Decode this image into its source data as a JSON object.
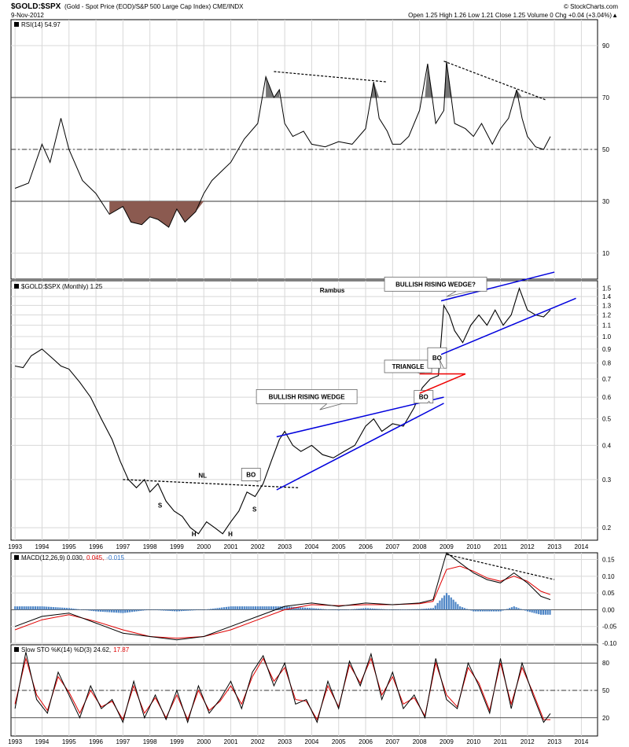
{
  "header": {
    "title": "$GOLD:$SPX",
    "subtitle": "(Gold - Spot Price (EOD)/S&P 500 Large Cap Index)  CME/INDX",
    "date": "9-Nov-2012",
    "site": "© StockCharts.com",
    "quote": "Open 1.25  High 1.26  Low 1.21  Close 1.25  Volume 0  Chg +0.04 (+3.04%)",
    "quote_up_arrow": "▲"
  },
  "chart_data": [
    {
      "type": "line",
      "panel": "rsi",
      "title": "RSI(14) 54.97",
      "ylabel": "",
      "ylim": [
        0,
        100
      ],
      "yticks": [
        10,
        30,
        50,
        70,
        90
      ],
      "reference_lines": [
        30,
        50,
        70
      ],
      "x": [
        1993.0,
        1993.5,
        1994.0,
        1994.3,
        1994.7,
        1995.0,
        1995.5,
        1996.0,
        1996.5,
        1997.0,
        1997.3,
        1997.7,
        1998.0,
        1998.3,
        1998.7,
        1999.0,
        1999.3,
        1999.7,
        2000.0,
        2000.3,
        2000.7,
        2001.0,
        2001.5,
        2002.0,
        2002.3,
        2002.6,
        2002.8,
        2003.0,
        2003.3,
        2003.7,
        2004.0,
        2004.5,
        2005.0,
        2005.5,
        2006.0,
        2006.3,
        2006.5,
        2006.8,
        2007.0,
        2007.3,
        2007.6,
        2008.0,
        2008.3,
        2008.6,
        2008.9,
        2009.0,
        2009.3,
        2009.7,
        2010.0,
        2010.3,
        2010.7,
        2011.0,
        2011.3,
        2011.6,
        2011.8,
        2012.0,
        2012.3,
        2012.6,
        2012.85
      ],
      "values": [
        35,
        37,
        52,
        45,
        62,
        50,
        38,
        33,
        25,
        28,
        22,
        21,
        24,
        23,
        20,
        27,
        22,
        26,
        33,
        38,
        42,
        45,
        54,
        60,
        78,
        70,
        73,
        60,
        55,
        57,
        52,
        51,
        53,
        52,
        58,
        76,
        62,
        57,
        52,
        52,
        55,
        65,
        83,
        60,
        65,
        84,
        60,
        58,
        55,
        60,
        52,
        58,
        62,
        73,
        62,
        55,
        51,
        50,
        54.97
      ],
      "annotations": [
        "dashed resistance line 2002-2006",
        "dashed resistance line 2008-2012"
      ]
    },
    {
      "type": "line",
      "panel": "price",
      "title": "$GOLD:$SPX (Monthly) 1.25",
      "ylabel": "",
      "yscale": "log",
      "ylim": [
        0.18,
        1.6
      ],
      "yticks": [
        0.2,
        0.3,
        0.4,
        0.5,
        0.6,
        0.7,
        0.8,
        0.9,
        1.0,
        1.1,
        1.2,
        1.3,
        1.4,
        1.5
      ],
      "x_ticks": [
        "1993",
        "1994",
        "1995",
        "1996",
        "1997",
        "1998",
        "1999",
        "2000",
        "2001",
        "2002",
        "2003",
        "2004",
        "2005",
        "2006",
        "2007",
        "2008",
        "2009",
        "2010",
        "2011",
        "2012",
        "2013",
        "2014"
      ],
      "x": [
        1993.0,
        1993.3,
        1993.6,
        1994.0,
        1994.4,
        1994.7,
        1995.0,
        1995.4,
        1995.8,
        1996.2,
        1996.6,
        1996.9,
        1997.2,
        1997.5,
        1997.8,
        1998.0,
        1998.3,
        1998.6,
        1998.9,
        1999.2,
        1999.5,
        1999.8,
        2000.1,
        2000.4,
        2000.7,
        2001.0,
        2001.3,
        2001.6,
        2001.9,
        2002.2,
        2002.5,
        2002.8,
        2003.0,
        2003.3,
        2003.6,
        2004.0,
        2004.4,
        2004.8,
        2005.2,
        2005.6,
        2006.0,
        2006.3,
        2006.6,
        2007.0,
        2007.4,
        2007.8,
        2008.1,
        2008.4,
        2008.7,
        2008.9,
        2009.1,
        2009.3,
        2009.6,
        2009.9,
        2010.2,
        2010.5,
        2010.8,
        2011.1,
        2011.4,
        2011.7,
        2012.0,
        2012.3,
        2012.6,
        2012.85
      ],
      "values": [
        0.78,
        0.77,
        0.85,
        0.9,
        0.83,
        0.78,
        0.76,
        0.68,
        0.6,
        0.5,
        0.42,
        0.35,
        0.3,
        0.28,
        0.3,
        0.27,
        0.29,
        0.25,
        0.23,
        0.22,
        0.2,
        0.19,
        0.21,
        0.2,
        0.19,
        0.21,
        0.23,
        0.27,
        0.26,
        0.29,
        0.35,
        0.42,
        0.45,
        0.4,
        0.38,
        0.4,
        0.37,
        0.36,
        0.38,
        0.4,
        0.47,
        0.5,
        0.45,
        0.48,
        0.47,
        0.55,
        0.65,
        0.7,
        0.72,
        1.3,
        1.2,
        1.05,
        0.95,
        1.1,
        1.2,
        1.1,
        1.25,
        1.1,
        1.2,
        1.5,
        1.25,
        1.2,
        1.18,
        1.25
      ],
      "annotations": [
        {
          "label": "NL"
        },
        {
          "label": "S"
        },
        {
          "label": "H"
        },
        {
          "label": "H"
        },
        {
          "label": "S"
        },
        {
          "label": "BO"
        },
        {
          "label": "BULLISH RISING WEDGE"
        },
        {
          "label": "BO"
        },
        {
          "label": "TRIANGLE"
        },
        {
          "label": "BO"
        },
        {
          "label": "BULLISH RISING WEDGE?"
        },
        {
          "label": "Rambus"
        }
      ]
    },
    {
      "type": "line",
      "panel": "macd",
      "title": "MACD(12,26,9) 0.030, 0.045, -0.015",
      "legend": {
        "macd": "0.030,",
        "signal": "0.045,",
        "hist": "-0.015"
      },
      "ylim": [
        -0.1,
        0.17
      ],
      "yticks": [
        -0.1,
        -0.05,
        0.0,
        0.05,
        0.1,
        0.15
      ],
      "x": [
        1993.0,
        1994.0,
        1995.0,
        1996.0,
        1997.0,
        1998.0,
        1999.0,
        2000.0,
        2001.0,
        2002.0,
        2003.0,
        2004.0,
        2005.0,
        2006.0,
        2007.0,
        2008.0,
        2008.5,
        2009.0,
        2009.5,
        2010.0,
        2010.5,
        2011.0,
        2011.5,
        2012.0,
        2012.5,
        2012.85
      ],
      "series": [
        {
          "name": "MACD",
          "values": [
            -0.05,
            -0.02,
            -0.01,
            -0.04,
            -0.07,
            -0.08,
            -0.09,
            -0.08,
            -0.05,
            -0.02,
            0.01,
            0.02,
            0.01,
            0.02,
            0.015,
            0.02,
            0.03,
            0.17,
            0.14,
            0.11,
            0.09,
            0.08,
            0.11,
            0.08,
            0.04,
            0.03
          ]
        },
        {
          "name": "Signal",
          "values": [
            -0.06,
            -0.03,
            -0.015,
            -0.035,
            -0.06,
            -0.08,
            -0.085,
            -0.08,
            -0.06,
            -0.03,
            0.0,
            0.015,
            0.012,
            0.015,
            0.015,
            0.018,
            0.025,
            0.12,
            0.13,
            0.115,
            0.095,
            0.085,
            0.1,
            0.085,
            0.055,
            0.045
          ]
        },
        {
          "name": "Histogram",
          "values": [
            0.01,
            0.01,
            0.005,
            -0.005,
            -0.01,
            0.0,
            -0.005,
            0.0,
            0.01,
            0.01,
            0.01,
            0.005,
            -0.002,
            0.005,
            0.0,
            0.002,
            0.005,
            0.05,
            0.01,
            -0.005,
            -0.005,
            -0.005,
            0.01,
            -0.005,
            -0.015,
            -0.015
          ]
        }
      ]
    },
    {
      "type": "line",
      "panel": "sto",
      "title": "Slow STO %K(14) %D(3) 24.62, 17.87",
      "legend": {
        "k": "24.62,",
        "d": "17.87"
      },
      "ylim": [
        0,
        100
      ],
      "yticks": [
        20,
        50,
        80
      ],
      "x": [
        1993.0,
        1993.4,
        1993.8,
        1994.2,
        1994.6,
        1995.0,
        1995.4,
        1995.8,
        1996.2,
        1996.6,
        1997.0,
        1997.4,
        1997.8,
        1998.2,
        1998.6,
        1999.0,
        1999.4,
        1999.8,
        2000.2,
        2000.6,
        2001.0,
        2001.4,
        2001.8,
        2002.2,
        2002.6,
        2003.0,
        2003.4,
        2003.8,
        2004.2,
        2004.6,
        2005.0,
        2005.4,
        2005.8,
        2006.2,
        2006.6,
        2007.0,
        2007.4,
        2007.8,
        2008.2,
        2008.6,
        2009.0,
        2009.4,
        2009.8,
        2010.2,
        2010.6,
        2011.0,
        2011.4,
        2011.8,
        2012.2,
        2012.6,
        2012.85
      ],
      "series": [
        {
          "name": "%K",
          "values": [
            30,
            92,
            40,
            25,
            70,
            45,
            20,
            55,
            30,
            40,
            15,
            60,
            20,
            45,
            18,
            50,
            15,
            55,
            25,
            40,
            60,
            30,
            70,
            88,
            55,
            80,
            35,
            40,
            15,
            60,
            30,
            82,
            55,
            90,
            40,
            70,
            30,
            45,
            20,
            85,
            40,
            30,
            80,
            55,
            25,
            85,
            30,
            80,
            45,
            15,
            24.62
          ]
        },
        {
          "name": "%D",
          "values": [
            35,
            85,
            45,
            28,
            65,
            48,
            25,
            50,
            32,
            38,
            18,
            55,
            25,
            42,
            20,
            45,
            18,
            50,
            28,
            38,
            55,
            35,
            65,
            85,
            60,
            75,
            40,
            38,
            18,
            55,
            32,
            78,
            58,
            85,
            45,
            65,
            35,
            42,
            22,
            80,
            45,
            32,
            75,
            58,
            28,
            80,
            35,
            75,
            48,
            18,
            17.87
          ]
        }
      ]
    }
  ]
}
